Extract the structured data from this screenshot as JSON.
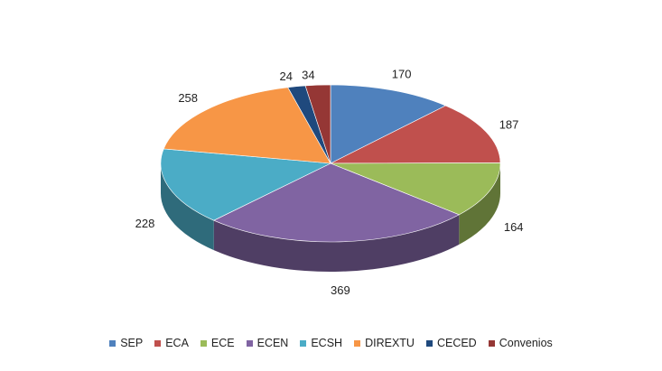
{
  "chart_data": {
    "type": "pie",
    "style": "3d",
    "title": "",
    "categories": [
      "SEP",
      "ECA",
      "ECE",
      "ECEN",
      "ECSH",
      "DIREXTU",
      "CECED",
      "Convenios"
    ],
    "values": [
      170,
      187,
      164,
      369,
      228,
      258,
      24,
      34
    ],
    "colors": [
      "#4f81bd",
      "#c0504d",
      "#9bbb59",
      "#8064a2",
      "#4bacc6",
      "#f79646",
      "#1f497d",
      "#953735"
    ],
    "legend_position": "bottom",
    "data_labels": true
  }
}
